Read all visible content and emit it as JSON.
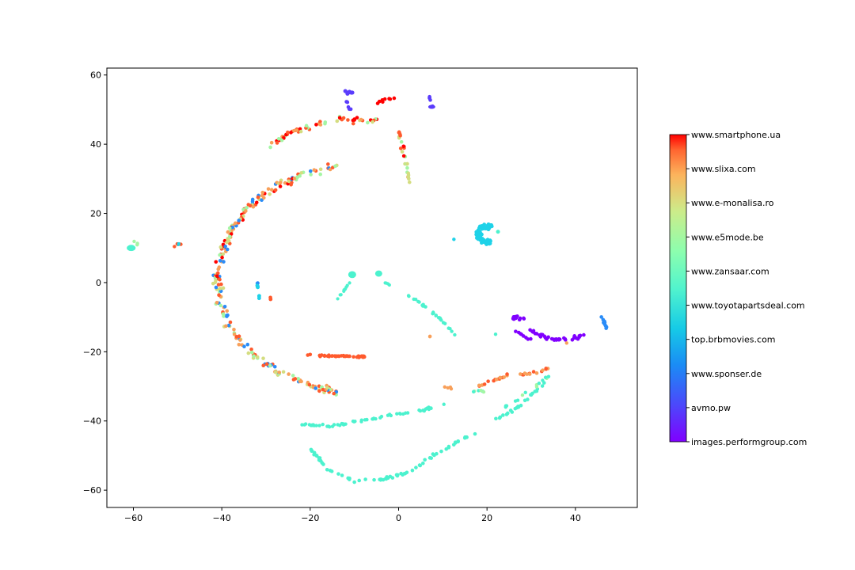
{
  "chart_data": {
    "type": "scatter",
    "title": "",
    "xlabel": "",
    "ylabel": "",
    "xlim": [
      -66,
      54
    ],
    "ylim": [
      -65,
      62
    ],
    "x_ticks": [
      -60,
      -40,
      -20,
      0,
      20,
      40
    ],
    "y_ticks": [
      -60,
      -40,
      -20,
      0,
      20,
      40,
      60
    ],
    "x_tick_labels": [
      "−60",
      "−40",
      "−20",
      "0",
      "20",
      "40"
    ],
    "y_tick_labels": [
      "−60",
      "−40",
      "−20",
      "0",
      "20",
      "40",
      "60"
    ],
    "grid": false,
    "colormap": "rainbow",
    "colorbar": {
      "labels": [
        "www.smartphone.ua",
        "www.slixa.com",
        "www.e-monalisa.ro",
        "www.e5mode.be",
        "www.zansaar.com",
        "www.toyotapartsdeal.com",
        "top.brbmovies.com",
        "www.sponser.de",
        "avmo.pw",
        "images.performgroup.com"
      ],
      "colors": [
        "#ff0000",
        "#ff5a2d",
        "#f8a05a",
        "#d4dd80",
        "#a4f6a4",
        "#4cf2ce",
        "#1ed2e8",
        "#2a8cf8",
        "#5a3cfc",
        "#8000ff"
      ]
    },
    "clusters": [
      {
        "shape": "arc",
        "cx": -8,
        "cy": 1,
        "r": 33,
        "start": 100,
        "end": 180,
        "n": 130,
        "colors": [
          0,
          1,
          2,
          3,
          4,
          7
        ],
        "spread": 1.6,
        "size": 2.3
      },
      {
        "shape": "arc",
        "cx": -8,
        "cy": 1,
        "r": 33,
        "start": 180,
        "end": 262,
        "n": 120,
        "colors": [
          1,
          2,
          3,
          4,
          7
        ],
        "spread": 1.5,
        "size": 2.3
      },
      {
        "shape": "polyline",
        "points": [
          [
            -29,
            39
          ],
          [
            -25,
            43
          ],
          [
            -20,
            45
          ],
          [
            -15,
            47
          ],
          [
            -10,
            47
          ],
          [
            -5,
            47
          ]
        ],
        "n": 55,
        "colors": [
          0,
          1,
          2,
          3,
          4
        ],
        "spread": 1.2,
        "size": 2.3
      },
      {
        "shape": "polyline",
        "points": [
          [
            -5,
            52
          ],
          [
            -1,
            53.5
          ]
        ],
        "n": 8,
        "colors": [
          0
        ],
        "spread": 0.7,
        "size": 2.3
      },
      {
        "shape": "polyline",
        "points": [
          [
            0,
            44
          ],
          [
            1,
            38
          ],
          [
            2,
            33
          ],
          [
            2.5,
            29
          ]
        ],
        "n": 26,
        "colors": [
          0,
          1,
          4,
          3
        ],
        "spread": 1.0,
        "size": 2.3
      },
      {
        "shape": "polyline",
        "points": [
          [
            -12,
            55
          ],
          [
            -10,
            55
          ]
        ],
        "n": 6,
        "colors": [
          8
        ],
        "spread": 0.6,
        "size": 2.6
      },
      {
        "shape": "polyline",
        "points": [
          [
            -12,
            53
          ],
          [
            -11,
            50
          ]
        ],
        "n": 6,
        "colors": [
          8
        ],
        "spread": 0.6,
        "size": 2.3
      },
      {
        "shape": "blob",
        "cx": 7.5,
        "cy": 50.8,
        "rx": 0.8,
        "ry": 0.6,
        "color": 8
      },
      {
        "shape": "polyline",
        "points": [
          [
            7,
            53.5
          ],
          [
            8,
            49
          ]
        ],
        "n": 5,
        "colors": [
          8
        ],
        "spread": 0.4,
        "size": 2.3
      },
      {
        "shape": "blob",
        "cx": -60.5,
        "cy": 10,
        "rx": 1.0,
        "ry": 0.9,
        "color": 5
      },
      {
        "shape": "polyline",
        "points": [
          [
            -60,
            12
          ],
          [
            -59,
            11
          ]
        ],
        "n": 4,
        "colors": [
          4
        ],
        "spread": 0.5,
        "size": 2.2
      },
      {
        "shape": "polyline",
        "points": [
          [
            -51,
            10.5
          ],
          [
            -49,
            11.5
          ]
        ],
        "n": 6,
        "colors": [
          1,
          6
        ],
        "spread": 0.5,
        "size": 2.2
      },
      {
        "shape": "polyline",
        "points": [
          [
            -32,
            0
          ],
          [
            -31.5,
            -5
          ]
        ],
        "n": 12,
        "colors": [
          6,
          7
        ],
        "spread": 0.3,
        "size": 2.3
      },
      {
        "shape": "polyline",
        "points": [
          [
            -29,
            -4
          ],
          [
            -29,
            -5
          ]
        ],
        "n": 3,
        "colors": [
          1
        ],
        "spread": 0.3,
        "size": 2.3
      },
      {
        "shape": "polyline",
        "points": [
          [
            -21,
            -21
          ],
          [
            -7.5,
            -21.5
          ]
        ],
        "n": 40,
        "colors": [
          1
        ],
        "spread": 0.4,
        "size": 2.3
      },
      {
        "shape": "blob",
        "cx": -10.5,
        "cy": 2.3,
        "rx": 0.9,
        "ry": 1.0,
        "color": 5
      },
      {
        "shape": "blob",
        "cx": -4.5,
        "cy": 2.6,
        "rx": 0.8,
        "ry": 0.9,
        "color": 5
      },
      {
        "shape": "polyline",
        "points": [
          [
            -11,
            0
          ],
          [
            -14,
            -5
          ]
        ],
        "n": 10,
        "colors": [
          5
        ],
        "spread": 0.3,
        "size": 2.1
      },
      {
        "shape": "polyline",
        "points": [
          [
            -3,
            0
          ],
          [
            -2,
            -1
          ]
        ],
        "n": 4,
        "colors": [
          5
        ],
        "spread": 0.3,
        "size": 2.1
      },
      {
        "shape": "polyline",
        "points": [
          [
            1,
            -3
          ],
          [
            5,
            -6
          ],
          [
            9,
            -10
          ],
          [
            13,
            -15
          ]
        ],
        "n": 30,
        "colors": [
          5
        ],
        "spread": 0.5,
        "size": 2.2
      },
      {
        "shape": "ring",
        "cx": 20,
        "cy": 14,
        "r": 2.8,
        "n": 70,
        "colors": [
          6
        ],
        "size": 2.3
      },
      {
        "shape": "polyline",
        "points": [
          [
            25.5,
            -10
          ],
          [
            28.5,
            -10.5
          ]
        ],
        "n": 16,
        "colors": [
          9
        ],
        "spread": 0.8,
        "size": 2.3
      },
      {
        "shape": "polyline",
        "points": [
          [
            29,
            -13
          ],
          [
            33,
            -16
          ],
          [
            36,
            -16.5
          ],
          [
            42,
            -15.5
          ]
        ],
        "n": 36,
        "colors": [
          9
        ],
        "spread": 0.7,
        "size": 2.3
      },
      {
        "shape": "polyline",
        "points": [
          [
            26,
            -14
          ],
          [
            30,
            -16.5
          ]
        ],
        "n": 8,
        "colors": [
          9
        ],
        "spread": 0.6,
        "size": 2.3
      },
      {
        "shape": "polyline",
        "points": [
          [
            46,
            -10
          ],
          [
            47,
            -13
          ]
        ],
        "n": 15,
        "colors": [
          7
        ],
        "spread": 0.5,
        "size": 2.3
      },
      {
        "shape": "polyline",
        "points": [
          [
            18,
            -30
          ],
          [
            24,
            -27
          ],
          [
            31,
            -26
          ],
          [
            35,
            -24.5
          ]
        ],
        "n": 30,
        "colors": [
          2,
          1
        ],
        "spread": 0.6,
        "size": 2.3
      },
      {
        "shape": "polyline",
        "points": [
          [
            17,
            -31.5
          ],
          [
            20,
            -31.5
          ]
        ],
        "n": 6,
        "colors": [
          4,
          5
        ],
        "spread": 0.4,
        "size": 2.2
      },
      {
        "shape": "polyline",
        "points": [
          [
            10,
            -30
          ],
          [
            12,
            -30.5
          ]
        ],
        "n": 4,
        "colors": [
          2
        ],
        "spread": 0.3,
        "size": 2.2
      },
      {
        "shape": "polyline",
        "points": [
          [
            -22,
            -41
          ],
          [
            -15,
            -41.5
          ],
          [
            -5,
            -39
          ],
          [
            5,
            -37
          ],
          [
            11,
            -35
          ]
        ],
        "n": 60,
        "colors": [
          5
        ],
        "spread": 0.5,
        "size": 2.2
      },
      {
        "shape": "polyline",
        "points": [
          [
            -20,
            -48
          ],
          [
            -16,
            -54
          ],
          [
            -10,
            -57.5
          ],
          [
            -4,
            -57
          ],
          [
            2,
            -55
          ],
          [
            8,
            -50
          ],
          [
            15,
            -45
          ],
          [
            20,
            -41
          ],
          [
            26,
            -37
          ],
          [
            33,
            -29
          ]
        ],
        "n": 95,
        "colors": [
          5
        ],
        "spread": 0.6,
        "size": 2.3
      },
      {
        "shape": "polyline",
        "points": [
          [
            24,
            -36
          ],
          [
            30,
            -31
          ],
          [
            34,
            -27
          ]
        ],
        "n": 16,
        "colors": [
          5,
          4
        ],
        "spread": 0.5,
        "size": 2.2
      },
      {
        "shape": "polyline",
        "points": [
          [
            8,
            -15
          ],
          [
            7,
            -15.5
          ]
        ],
        "n": 2,
        "colors": [
          2
        ],
        "spread": 0.3,
        "size": 2.2
      },
      {
        "shape": "polyline",
        "points": [
          [
            22,
            -15
          ],
          [
            22,
            -15
          ]
        ],
        "n": 1,
        "colors": [
          5
        ],
        "spread": 0.2,
        "size": 2.2
      },
      {
        "shape": "polyline",
        "points": [
          [
            12.5,
            12.5
          ],
          [
            12.5,
            12.5
          ]
        ],
        "n": 1,
        "colors": [
          6
        ],
        "spread": 0.2,
        "size": 2.2
      },
      {
        "shape": "polyline",
        "points": [
          [
            22.5,
            14.7
          ],
          [
            22.5,
            14.7
          ]
        ],
        "n": 1,
        "colors": [
          5
        ],
        "spread": 0.2,
        "size": 2.5
      },
      {
        "shape": "polyline",
        "points": [
          [
            38,
            -17.5
          ],
          [
            38,
            -17.5
          ]
        ],
        "n": 1,
        "colors": [
          2
        ],
        "spread": 0.2,
        "size": 2.2
      }
    ]
  }
}
